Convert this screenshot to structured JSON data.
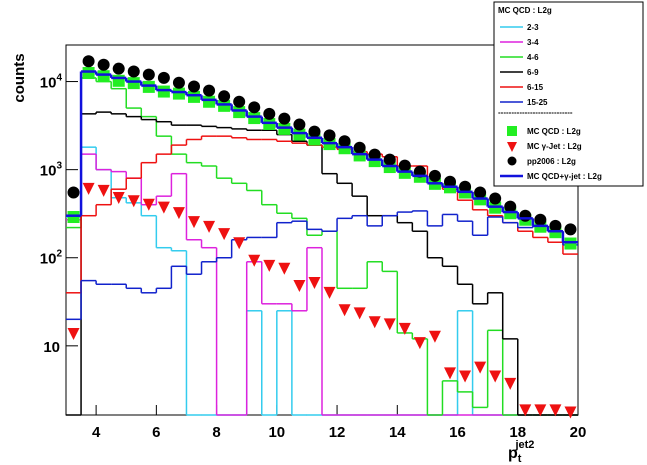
{
  "chart_data": {
    "type": "histogram",
    "ylabel": "counts",
    "xlabel": {
      "text": "p",
      "sub": "t",
      "sup": "jet2"
    },
    "log_y": true,
    "xlim": [
      3,
      20
    ],
    "ylim": [
      1.64,
      26000
    ],
    "xticks": [
      4,
      6,
      8,
      10,
      12,
      14,
      16,
      18,
      20
    ],
    "yticks": [
      {
        "value": 10,
        "label": "10"
      },
      {
        "value": 100,
        "label": "10",
        "exponent": "2"
      },
      {
        "value": 1000,
        "label": "10",
        "exponent": "3"
      },
      {
        "value": 10000,
        "label": "10",
        "exponent": "4"
      }
    ],
    "bins": [
      3,
      3.5,
      4,
      4.5,
      5,
      5.5,
      6,
      6.5,
      7,
      7.5,
      8,
      8.5,
      9,
      9.5,
      10,
      10.5,
      11,
      11.5,
      12,
      12.5,
      13,
      13.5,
      14,
      14.5,
      15,
      15.5,
      16,
      16.5,
      17,
      17.5,
      18,
      18.5,
      19,
      19.5,
      20
    ],
    "legend_title": "MC QCD : L2g",
    "legend_separator": "----------------------------",
    "legend_position": "top-right",
    "series": [
      {
        "name": "2-3",
        "color": "#33ccee",
        "style": "step",
        "values": [
          290,
          1800,
          1000,
          480,
          420,
          300,
          130,
          120,
          0,
          0,
          0,
          0,
          25,
          0,
          25,
          0,
          0,
          0,
          0,
          0,
          0,
          0,
          0,
          0,
          0,
          0,
          25,
          0,
          0,
          0,
          0,
          0,
          0,
          0
        ]
      },
      {
        "name": "3-4",
        "color": "#dd22dd",
        "style": "step",
        "values": [
          270,
          1500,
          1000,
          950,
          800,
          400,
          500,
          900,
          160,
          130,
          0,
          0,
          90,
          30,
          30,
          25,
          130,
          0,
          0,
          0,
          0,
          0,
          0,
          0,
          0,
          0,
          0,
          0,
          0,
          0,
          0,
          0,
          0,
          0
        ]
      },
      {
        "name": "4-6",
        "color": "#22dd22",
        "style": "step",
        "values": [
          220,
          11000,
          10000,
          8300,
          5000,
          4000,
          2400,
          1500,
          1200,
          1100,
          800,
          700,
          580,
          400,
          320,
          280,
          180,
          200,
          45,
          45,
          90,
          70,
          14,
          12,
          0,
          4,
          3,
          2,
          15,
          0,
          0,
          0,
          0,
          0
        ]
      },
      {
        "name": "6-9",
        "color": "#000000",
        "style": "step",
        "values": [
          0,
          4300,
          4500,
          4300,
          4000,
          3700,
          3500,
          3200,
          3200,
          3100,
          3000,
          2900,
          2800,
          2800,
          2500,
          2100,
          1900,
          900,
          700,
          500,
          300,
          300,
          250,
          200,
          100,
          80,
          50,
          30,
          40,
          12,
          0,
          0,
          0,
          0
        ]
      },
      {
        "name": "6-15",
        "color": "#ee1111",
        "style": "step",
        "values": [
          40,
          300,
          400,
          600,
          800,
          1200,
          1500,
          1900,
          2200,
          2400,
          2400,
          2300,
          2200,
          2200,
          2100,
          2000,
          1900,
          1800,
          1700,
          1600,
          1500,
          1400,
          1100,
          1100,
          700,
          600,
          450,
          350,
          300,
          250,
          200,
          170,
          150,
          110
        ]
      },
      {
        "name": "15-25",
        "color": "#1122cc",
        "style": "step",
        "values": [
          20,
          55,
          50,
          50,
          45,
          40,
          45,
          80,
          65,
          90,
          100,
          160,
          170,
          170,
          250,
          260,
          210,
          200,
          280,
          300,
          230,
          300,
          330,
          340,
          230,
          310,
          260,
          180,
          290,
          250,
          220,
          230,
          200,
          140
        ]
      },
      {
        "name": "MC QCD : L2g",
        "color": "#22ee22",
        "style": "square",
        "values": [
          290,
          12500,
          11500,
          10200,
          9600,
          8700,
          7700,
          7300,
          6700,
          5900,
          5300,
          4500,
          3850,
          3300,
          2900,
          2500,
          2200,
          1950,
          1750,
          1450,
          1250,
          1070,
          920,
          830,
          690,
          630,
          550,
          460,
          370,
          320,
          270,
          225,
          195,
          145
        ]
      },
      {
        "name": "MC γ-Jet : L2g",
        "color": "#ee1111",
        "style": "triangle",
        "values": [
          14,
          620,
          590,
          490,
          450,
          410,
          380,
          330,
          260,
          230,
          190,
          150,
          95,
          83,
          77,
          49,
          53,
          41,
          26,
          24,
          19,
          18,
          16,
          11,
          13,
          5,
          4.6,
          5.8,
          4.6,
          3.8,
          1.9,
          1.9,
          1.9,
          1.8
        ]
      },
      {
        "name": "pp2006 : L2g",
        "color": "#000000",
        "style": "circle",
        "values": [
          550,
          17000,
          15500,
          14000,
          13000,
          12000,
          11000,
          9700,
          8800,
          7900,
          6800,
          5900,
          5100,
          4300,
          3800,
          3250,
          2700,
          2450,
          2100,
          1770,
          1480,
          1300,
          1110,
          950,
          850,
          730,
          640,
          550,
          470,
          380,
          300,
          270,
          230,
          210
        ]
      },
      {
        "name": "MC QCD+γ-jet : L2g",
        "color": "#1111dd",
        "style": "step-bold",
        "values": [
          300,
          13000,
          12000,
          11000,
          10000,
          9000,
          8000,
          7600,
          7000,
          6200,
          5500,
          4700,
          4000,
          3400,
          3000,
          2600,
          2300,
          2000,
          1800,
          1500,
          1300,
          1100,
          950,
          850,
          700,
          640,
          560,
          470,
          380,
          330,
          280,
          230,
          200,
          150
        ]
      }
    ]
  }
}
